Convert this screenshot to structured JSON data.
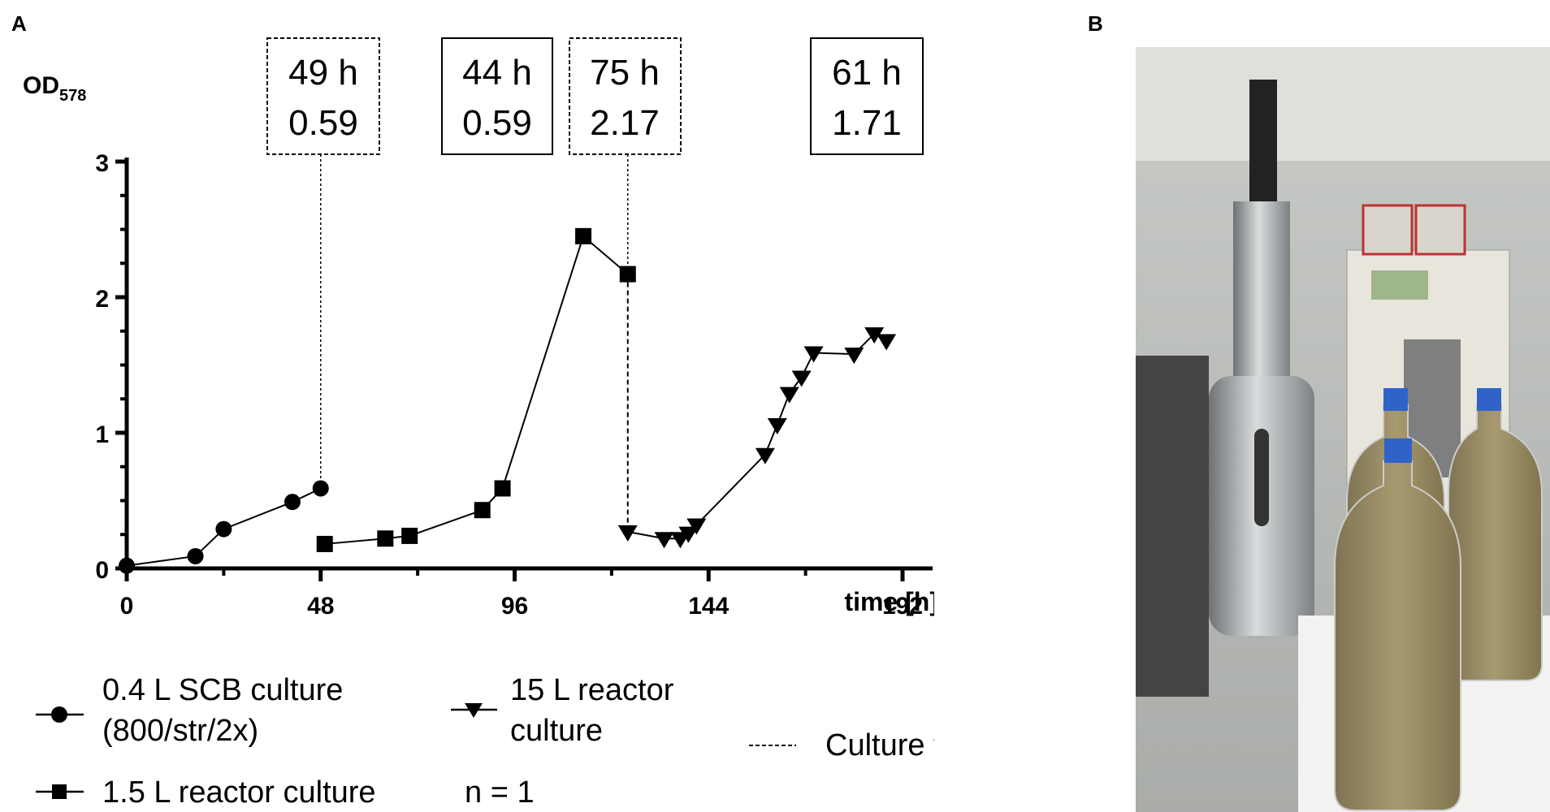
{
  "panels": {
    "a": "A",
    "b": "B"
  },
  "chart_data": {
    "type": "line",
    "ylabel_main": "OD",
    "ylabel_sub": "578",
    "xlabel": "time [h]",
    "xlim": [
      0,
      192
    ],
    "ylim": [
      0,
      3
    ],
    "xticks": [
      0,
      48,
      96,
      144,
      192
    ],
    "yticks": [
      0,
      1,
      2,
      3
    ],
    "series": [
      {
        "name": "0.4 L SCB culture (800/str/2x)",
        "marker": "circle",
        "x": [
          0,
          17,
          24,
          41,
          48
        ],
        "y": [
          0.02,
          0.09,
          0.29,
          0.49,
          0.59
        ]
      },
      {
        "name": "1.5 L reactor culture",
        "marker": "square",
        "x": [
          49,
          64,
          70,
          88,
          93,
          113,
          124
        ],
        "y": [
          0.18,
          0.22,
          0.24,
          0.43,
          0.59,
          2.45,
          2.17
        ]
      },
      {
        "name": "15 L reactor culture",
        "marker": "triangle-down",
        "x": [
          124,
          133,
          137,
          139,
          141,
          158,
          161,
          164,
          167,
          170,
          180,
          185,
          188
        ],
        "y": [
          0.27,
          0.22,
          0.22,
          0.26,
          0.32,
          0.84,
          1.06,
          1.29,
          1.41,
          1.59,
          1.58,
          1.73,
          1.68
        ]
      }
    ],
    "transfers": [
      48,
      124
    ],
    "annotations": [
      {
        "line1": "49 h",
        "line2": "0.59",
        "border": "dashed"
      },
      {
        "line1": "44 h",
        "line2": "0.59",
        "border": "solid"
      },
      {
        "line1": "75 h",
        "line2": "2.17",
        "border": "dashed"
      },
      {
        "line1": "61 h",
        "line2": "1.71",
        "border": "solid"
      }
    ],
    "legend": {
      "scb_line1": "0.4 L SCB culture",
      "scb_line2": "(800/str/2x)",
      "r15_line1": "15 L reactor",
      "r15_line2": "culture",
      "transfer": "Culture transfer",
      "r1_5": "1.5 L reactor culture",
      "n": "n = 1"
    }
  },
  "photo": {
    "bottle_caps_color": "#2f63c8",
    "liquid_color": "#9c8e66"
  }
}
